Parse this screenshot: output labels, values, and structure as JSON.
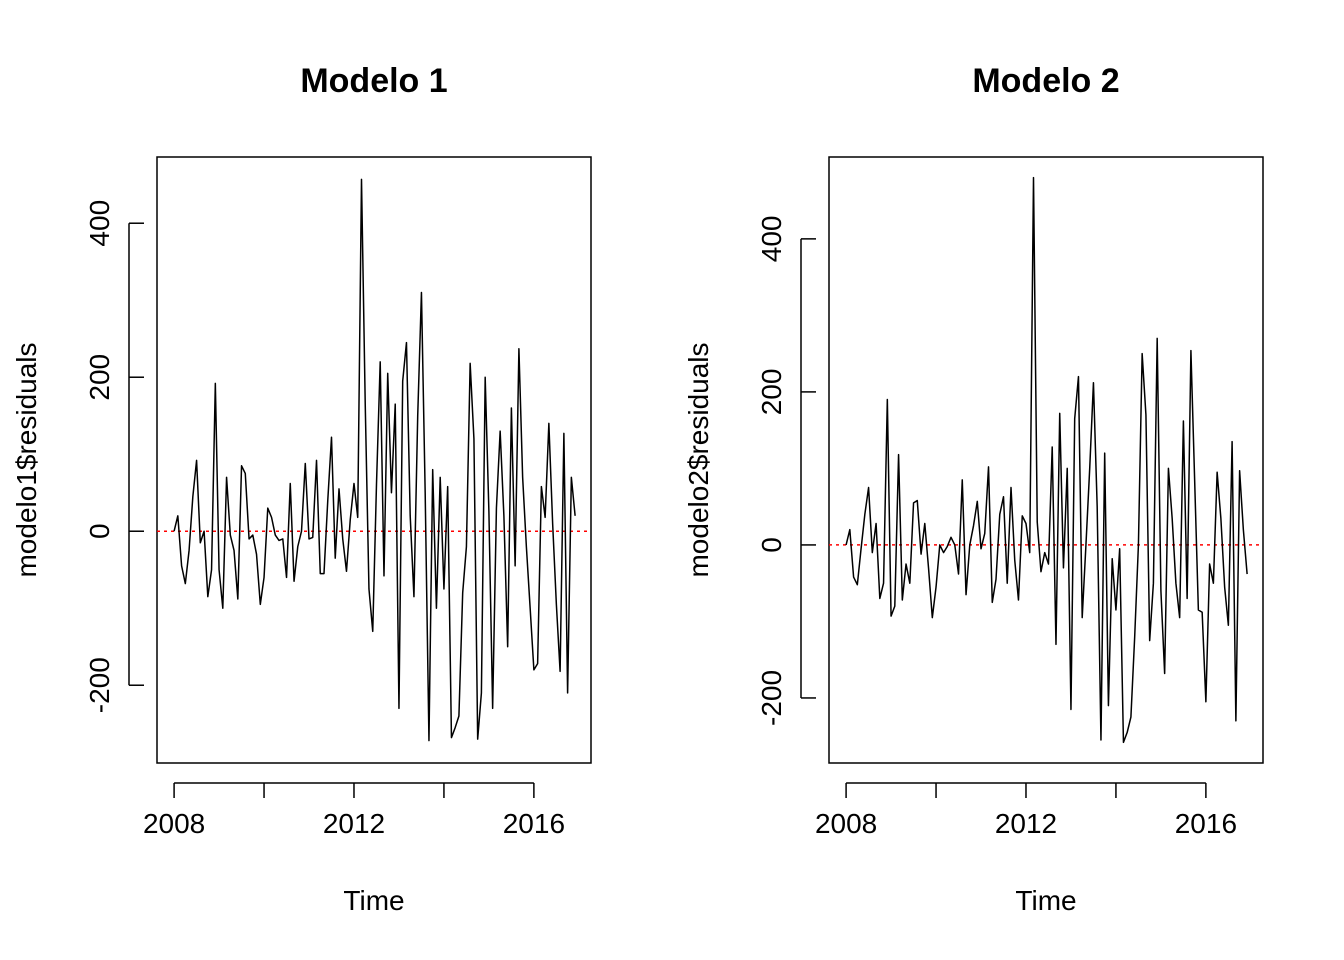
{
  "chart_data": [
    {
      "type": "line",
      "title": "Modelo 1",
      "x_label": "Time",
      "y_label": "modelo1$residuals",
      "x": [
        2008,
        2008.083,
        2008.167,
        2008.25,
        2008.333,
        2008.417,
        2008.5,
        2008.583,
        2008.667,
        2008.75,
        2008.833,
        2008.917,
        2009,
        2009.083,
        2009.167,
        2009.25,
        2009.333,
        2009.417,
        2009.5,
        2009.583,
        2009.667,
        2009.75,
        2009.833,
        2009.917,
        2010,
        2010.083,
        2010.167,
        2010.25,
        2010.333,
        2010.417,
        2010.5,
        2010.583,
        2010.667,
        2010.75,
        2010.833,
        2010.917,
        2011,
        2011.083,
        2011.167,
        2011.25,
        2011.333,
        2011.417,
        2011.5,
        2011.583,
        2011.667,
        2011.75,
        2011.833,
        2011.917,
        2012,
        2012.083,
        2012.167,
        2012.25,
        2012.333,
        2012.417,
        2012.5,
        2012.583,
        2012.667,
        2012.75,
        2012.833,
        2012.917,
        2013,
        2013.083,
        2013.167,
        2013.25,
        2013.333,
        2013.417,
        2013.5,
        2013.583,
        2013.667,
        2013.75,
        2013.833,
        2013.917,
        2014,
        2014.083,
        2014.167,
        2014.25,
        2014.333,
        2014.417,
        2014.5,
        2014.583,
        2014.667,
        2014.75,
        2014.833,
        2014.917,
        2015,
        2015.083,
        2015.167,
        2015.25,
        2015.333,
        2015.417,
        2015.5,
        2015.583,
        2015.667,
        2015.75,
        2015.833,
        2015.917,
        2016,
        2016.083,
        2016.167,
        2016.25,
        2016.333,
        2016.417,
        2016.5,
        2016.583,
        2016.667,
        2016.75,
        2016.833,
        2016.917
      ],
      "series": [
        {
          "color": "#000000",
          "values": [
            0,
            20,
            -45,
            -68,
            -25,
            45,
            92,
            -15,
            0,
            -85,
            -50,
            192,
            -50,
            -100,
            70,
            -5,
            -25,
            -88,
            85,
            75,
            -10,
            -5,
            -30,
            -95,
            -60,
            30,
            18,
            -5,
            -12,
            -10,
            -60,
            62,
            -65,
            -20,
            0,
            88,
            -10,
            -8,
            92,
            -55,
            -55,
            40,
            122,
            -35,
            55,
            -10,
            -52,
            15,
            62,
            18,
            457,
            165,
            -75,
            -130,
            60,
            220,
            -58,
            205,
            50,
            165,
            -230,
            195,
            245,
            20,
            -85,
            150,
            310,
            50,
            -272,
            80,
            -100,
            70,
            -75,
            58,
            -268,
            -255,
            -240,
            -80,
            -20,
            218,
            120,
            -270,
            -210,
            200,
            25,
            -230,
            30,
            130,
            20,
            -150,
            160,
            -45,
            237,
            70,
            -20,
            -100,
            -180,
            -172,
            58,
            18,
            140,
            10,
            -95,
            -182,
            127,
            -210,
            70,
            20
          ]
        }
      ],
      "reference_line": {
        "value": 0,
        "color": "#ff0000"
      },
      "xlim": [
        2007.62,
        2017.27
      ],
      "ylim": [
        -301,
        486
      ],
      "xticks": [
        2008,
        {
          "value": 2010,
          "label": null
        },
        2012,
        {
          "value": 2014,
          "label": null
        },
        2016
      ],
      "yticks": [
        -200,
        0,
        200,
        400
      ]
    },
    {
      "type": "line",
      "title": "Modelo 2",
      "x_label": "Time",
      "y_label": "modelo2$residuals",
      "x": [
        2008,
        2008.083,
        2008.167,
        2008.25,
        2008.333,
        2008.417,
        2008.5,
        2008.583,
        2008.667,
        2008.75,
        2008.833,
        2008.917,
        2009,
        2009.083,
        2009.167,
        2009.25,
        2009.333,
        2009.417,
        2009.5,
        2009.583,
        2009.667,
        2009.75,
        2009.833,
        2009.917,
        2010,
        2010.083,
        2010.167,
        2010.25,
        2010.333,
        2010.417,
        2010.5,
        2010.583,
        2010.667,
        2010.75,
        2010.833,
        2010.917,
        2011,
        2011.083,
        2011.167,
        2011.25,
        2011.333,
        2011.417,
        2011.5,
        2011.583,
        2011.667,
        2011.75,
        2011.833,
        2011.917,
        2012,
        2012.083,
        2012.167,
        2012.25,
        2012.333,
        2012.417,
        2012.5,
        2012.583,
        2012.667,
        2012.75,
        2012.833,
        2012.917,
        2013,
        2013.083,
        2013.167,
        2013.25,
        2013.333,
        2013.417,
        2013.5,
        2013.583,
        2013.667,
        2013.75,
        2013.833,
        2013.917,
        2014,
        2014.083,
        2014.167,
        2014.25,
        2014.333,
        2014.417,
        2014.5,
        2014.583,
        2014.667,
        2014.75,
        2014.833,
        2014.917,
        2015,
        2015.083,
        2015.167,
        2015.25,
        2015.333,
        2015.417,
        2015.5,
        2015.583,
        2015.667,
        2015.75,
        2015.833,
        2015.917,
        2016,
        2016.083,
        2016.167,
        2016.25,
        2016.333,
        2016.417,
        2016.5,
        2016.583,
        2016.667,
        2016.75,
        2016.833,
        2016.917
      ],
      "series": [
        {
          "color": "#000000",
          "values": [
            0,
            20,
            -42,
            -52,
            -5,
            40,
            75,
            -10,
            28,
            -70,
            -50,
            190,
            -93,
            -80,
            118,
            -72,
            -25,
            -50,
            55,
            58,
            -12,
            28,
            -30,
            -95,
            -55,
            0,
            -10,
            -2,
            10,
            0,
            -38,
            85,
            -65,
            0,
            25,
            57,
            -5,
            15,
            102,
            -75,
            -45,
            40,
            63,
            -50,
            75,
            -20,
            -72,
            38,
            28,
            -10,
            480,
            30,
            -35,
            -10,
            -25,
            128,
            -130,
            172,
            -30,
            100,
            -215,
            165,
            220,
            -95,
            0,
            100,
            212,
            50,
            -255,
            120,
            -210,
            -18,
            -85,
            -5,
            -258,
            -245,
            -225,
            -120,
            0,
            250,
            170,
            -125,
            -50,
            270,
            -60,
            -168,
            100,
            35,
            -50,
            -95,
            162,
            -70,
            254,
            85,
            -85,
            -88,
            -205,
            -25,
            -50,
            95,
            35,
            -55,
            -105,
            135,
            -230,
            97,
            20,
            -38
          ]
        }
      ],
      "reference_line": {
        "value": 0,
        "color": "#ff0000"
      },
      "xlim": [
        2007.62,
        2017.27
      ],
      "ylim": [
        -285,
        507
      ],
      "xticks": [
        2008,
        {
          "value": 2010,
          "label": null
        },
        2012,
        {
          "value": 2014,
          "label": null
        },
        2016
      ],
      "yticks": [
        -200,
        0,
        200,
        400
      ]
    }
  ]
}
